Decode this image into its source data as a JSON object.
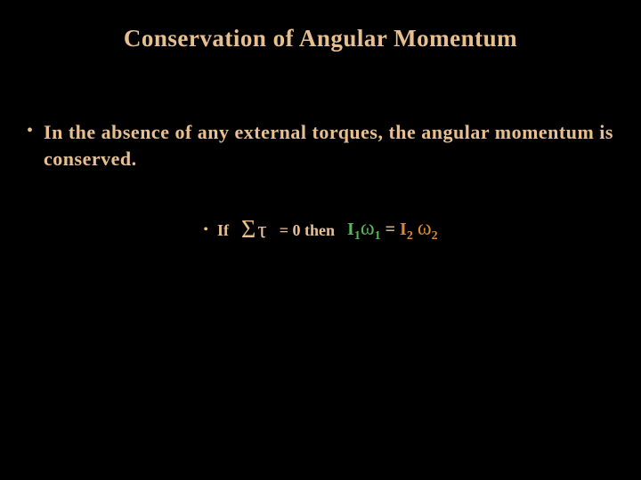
{
  "slide": {
    "background_color": "#000000",
    "title": {
      "text": "Conservation of Angular Momentum",
      "color": "#e8c090",
      "fontsize": 27,
      "weight": "bold"
    },
    "bullet1": {
      "mark": "•",
      "text": "In the absence of any external torques, the angular momentum is conserved.",
      "color": "#e8c090",
      "fontsize": 22,
      "weight": "bold"
    },
    "bullet2": {
      "mark": "•",
      "if_label": "If",
      "sigma": "Σ",
      "tau": "τ",
      "eq_zero_then": "= 0  then",
      "I1": "I",
      "sub1a": "1",
      "omega1": "ω",
      "sub1b": "1",
      "eq_sign": " = ",
      "I2": "I",
      "sub2a": "2",
      "omega2": "ω",
      "sub2b": "2",
      "colors": {
        "default": "#e8c090",
        "lhs": "#57b857",
        "rhs": "#db8b2e"
      },
      "fontsize_text": 18,
      "fontsize_symbol": 26
    }
  }
}
